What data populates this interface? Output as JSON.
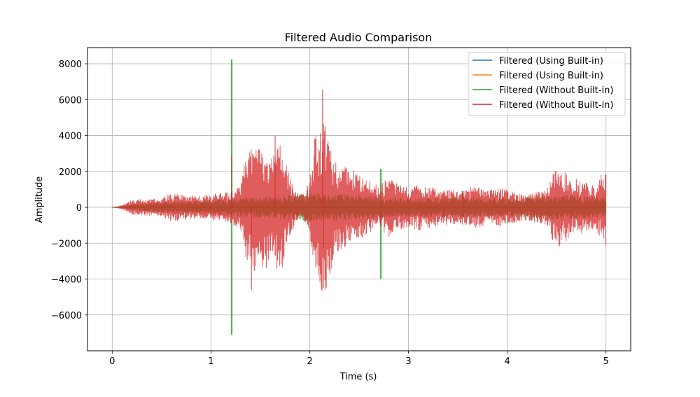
{
  "chart_data": {
    "type": "line",
    "title": "Filtered Audio Comparison",
    "xlabel": "Time (s)",
    "ylabel": "Amplitude",
    "xlim": [
      -0.25,
      5.25
    ],
    "ylim": [
      -8000,
      8900
    ],
    "xticks": [
      0,
      1,
      2,
      3,
      4,
      5
    ],
    "xtick_labels": [
      "0",
      "1",
      "2",
      "3",
      "4",
      "5"
    ],
    "yticks": [
      -6000,
      -4000,
      -2000,
      0,
      2000,
      4000,
      6000,
      8000
    ],
    "ytick_labels": [
      "−6000",
      "−4000",
      "−2000",
      "0",
      "2000",
      "4000",
      "6000",
      "8000"
    ],
    "grid": true,
    "legend_position": "top-right",
    "series": [
      {
        "name": "Filtered (Using Built-in)",
        "color": "#1f77b4",
        "envelope": {
          "t": [
            0,
            0.1,
            0.2,
            0.5,
            1.0,
            1.2,
            1.5,
            2.0,
            2.5,
            3.0,
            3.5,
            4.0,
            4.5,
            5.0
          ],
          "amp": [
            0,
            10,
            20,
            30,
            40,
            40,
            40,
            40,
            40,
            40,
            40,
            40,
            40,
            40
          ]
        }
      },
      {
        "name": "Filtered (Using Built-in)",
        "color": "#ff7f0e",
        "envelope": {
          "t": [
            0,
            0.1,
            0.2,
            0.5,
            1.0,
            1.2,
            1.5,
            2.0,
            2.5,
            3.0,
            3.5,
            4.0,
            4.5,
            5.0
          ],
          "amp": [
            0,
            10,
            20,
            30,
            40,
            40,
            40,
            40,
            40,
            40,
            40,
            40,
            40,
            40
          ]
        }
      },
      {
        "name": "Filtered (Without Built-in)",
        "color": "#2ca02c",
        "envelope": {
          "t": [
            0,
            0.1,
            0.2,
            0.5,
            1.0,
            1.5,
            2.0,
            2.5,
            3.0,
            3.5,
            4.0,
            4.5,
            5.0
          ],
          "amp": [
            0,
            50,
            150,
            300,
            400,
            600,
            800,
            700,
            500,
            600,
            500,
            700,
            600
          ]
        },
        "spikes": [
          {
            "t": 1.21,
            "max": 8250,
            "min": -7100
          },
          {
            "t": 2.72,
            "max": 2150,
            "min": -4000
          },
          {
            "t": 3.55,
            "max": 900,
            "min": -500
          }
        ]
      },
      {
        "name": "Filtered (Without Built-in)",
        "color": "#d62728",
        "envelope": {
          "t": [
            0,
            0.05,
            0.1,
            0.2,
            0.3,
            0.5,
            0.6,
            0.7,
            0.9,
            1.0,
            1.1,
            1.2,
            1.3,
            1.35,
            1.4,
            1.45,
            1.5,
            1.55,
            1.6,
            1.65,
            1.7,
            1.75,
            1.8,
            1.85,
            1.9,
            1.95,
            2.0,
            2.05,
            2.1,
            2.15,
            2.2,
            2.25,
            2.3,
            2.35,
            2.4,
            2.5,
            2.6,
            2.7,
            2.8,
            2.9,
            3.0,
            3.1,
            3.2,
            3.3,
            3.4,
            3.5,
            3.6,
            3.7,
            3.8,
            3.9,
            4.0,
            4.1,
            4.2,
            4.3,
            4.4,
            4.45,
            4.5,
            4.55,
            4.6,
            4.65,
            4.7,
            4.8,
            4.9,
            4.95,
            5.0
          ],
          "amp": [
            0,
            30,
            120,
            400,
            450,
            500,
            800,
            700,
            600,
            700,
            800,
            900,
            1200,
            2800,
            3500,
            3800,
            3200,
            3600,
            2600,
            3200,
            3900,
            2800,
            1800,
            900,
            700,
            800,
            1500,
            4200,
            4500,
            5200,
            3800,
            2800,
            2600,
            2200,
            2400,
            1800,
            1400,
            1200,
            1700,
            1300,
            1100,
            1300,
            1200,
            1000,
            1000,
            900,
            1100,
            1200,
            900,
            1100,
            1000,
            800,
            700,
            900,
            1000,
            1800,
            2500,
            1900,
            2000,
            1400,
            1600,
            1400,
            1200,
            1900,
            2200
          ]
        },
        "peaks": [
          {
            "t": 2.13,
            "value": 6550
          },
          {
            "t": 1.41,
            "value": -4600
          },
          {
            "t": 2.14,
            "value": -4500
          },
          {
            "t": 1.65,
            "value": 4000
          },
          {
            "t": 1.21,
            "value": 2900
          }
        ]
      }
    ]
  }
}
